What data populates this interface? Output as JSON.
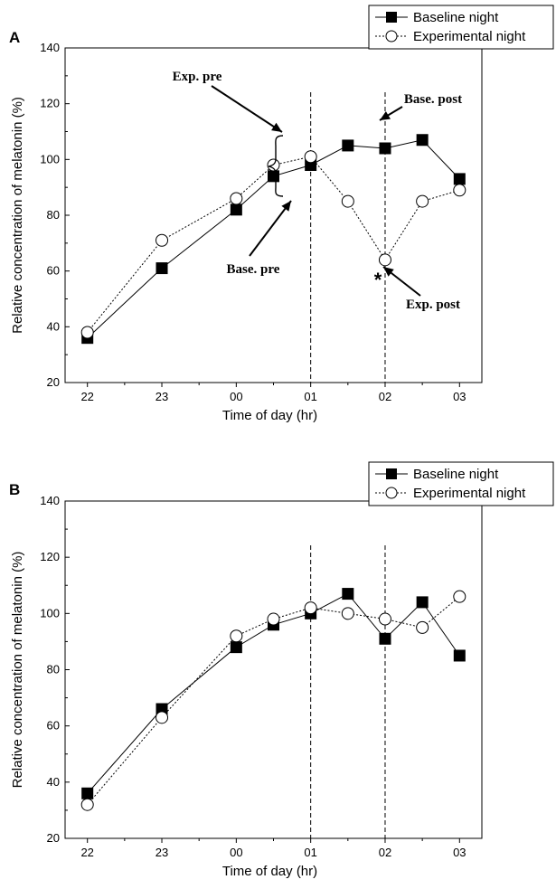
{
  "chart_data": [
    {
      "panel": "A",
      "type": "line",
      "xlabel": "Time of day (hr)",
      "ylabel": "Relative concentration of melatonin (%)",
      "ylim": [
        20,
        140
      ],
      "yticks": [
        "20",
        "40",
        "60",
        "80",
        "100",
        "120",
        "140"
      ],
      "xlim": [
        -0.3,
        5.3
      ],
      "xticks": [
        {
          "value": 0,
          "label": "22"
        },
        {
          "value": 1,
          "label": "23"
        },
        {
          "value": 2,
          "label": "00"
        },
        {
          "value": 3,
          "label": "01"
        },
        {
          "value": 4,
          "label": "02"
        },
        {
          "value": 5,
          "label": "03"
        }
      ],
      "x": [
        0,
        1,
        2,
        2.5,
        3,
        3.5,
        4,
        4.5,
        5
      ],
      "vlines": [
        3,
        4
      ],
      "legend_position": "top-right",
      "series": [
        {
          "name": "Baseline night",
          "marker": "filled-square",
          "line": "solid",
          "values": [
            36,
            61,
            82,
            94,
            98,
            105,
            104,
            107,
            93
          ]
        },
        {
          "name": "Experimental night",
          "marker": "open-circle",
          "line": "dotted",
          "values": [
            38,
            71,
            86,
            98,
            101,
            85,
            64,
            85,
            89
          ]
        }
      ],
      "annotations": [
        {
          "text": "Exp. pre"
        },
        {
          "text": "Base. pre"
        },
        {
          "text": "Base. post"
        },
        {
          "text": "Exp. post"
        },
        {
          "text": "*"
        }
      ]
    },
    {
      "panel": "B",
      "type": "line",
      "xlabel": "Time of day (hr)",
      "ylabel": "Relative concentration of melatonin (%)",
      "ylim": [
        20,
        140
      ],
      "yticks": [
        "20",
        "40",
        "60",
        "80",
        "100",
        "120",
        "140"
      ],
      "xlim": [
        -0.3,
        5.3
      ],
      "xticks": [
        {
          "value": 0,
          "label": "22"
        },
        {
          "value": 1,
          "label": "23"
        },
        {
          "value": 2,
          "label": "00"
        },
        {
          "value": 3,
          "label": "01"
        },
        {
          "value": 4,
          "label": "02"
        },
        {
          "value": 5,
          "label": "03"
        }
      ],
      "x": [
        0,
        1,
        2,
        2.5,
        3,
        3.5,
        4,
        4.5,
        5
      ],
      "vlines": [
        3,
        4
      ],
      "legend_position": "top-right",
      "series": [
        {
          "name": "Baseline night",
          "marker": "filled-square",
          "line": "solid",
          "values": [
            36,
            66,
            88,
            96,
            100,
            107,
            91,
            104,
            85
          ]
        },
        {
          "name": "Experimental night",
          "marker": "open-circle",
          "line": "dotted",
          "values": [
            32,
            63,
            92,
            98,
            102,
            100,
            98,
            95,
            106
          ]
        }
      ],
      "annotations": []
    }
  ]
}
